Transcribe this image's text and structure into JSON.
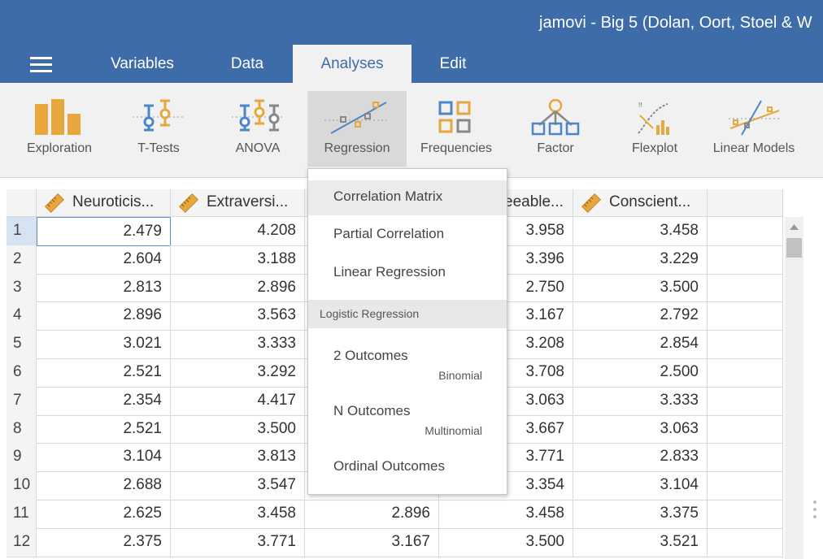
{
  "header": {
    "title": "jamovi - Big 5 (Dolan, Oort, Stoel & W"
  },
  "tabs": [
    "Variables",
    "Data",
    "Analyses",
    "Edit"
  ],
  "ribbon": {
    "buttons": [
      "Exploration",
      "T-Tests",
      "ANOVA",
      "Regression",
      "Frequencies",
      "Factor",
      "Flexplot",
      "Linear Models"
    ]
  },
  "table": {
    "columns": [
      "Neuroticis...",
      "Extraversi...",
      null,
      "eeable...",
      "Conscient..."
    ],
    "rows": [
      [
        "1",
        "2.479",
        "4.208",
        null,
        "3.958",
        "3.458"
      ],
      [
        "2",
        "2.604",
        "3.188",
        null,
        "3.396",
        "3.229"
      ],
      [
        "3",
        "2.813",
        "2.896",
        null,
        "2.750",
        "3.500"
      ],
      [
        "4",
        "2.896",
        "3.563",
        null,
        "3.167",
        "2.792"
      ],
      [
        "5",
        "3.021",
        "3.333",
        null,
        "3.208",
        "2.854"
      ],
      [
        "6",
        "2.521",
        "3.292",
        null,
        "3.708",
        "2.500"
      ],
      [
        "7",
        "2.354",
        "4.417",
        null,
        "3.063",
        "3.333"
      ],
      [
        "8",
        "2.521",
        "3.500",
        null,
        "3.667",
        "3.063"
      ],
      [
        "9",
        "3.104",
        "3.813",
        null,
        "3.771",
        "2.833"
      ],
      [
        "10",
        "2.688",
        "3.547",
        null,
        "3.354",
        "3.104"
      ],
      [
        "11",
        "2.625",
        "3.458",
        "2.896",
        "3.458",
        "3.375"
      ],
      [
        "12",
        "2.375",
        "3.771",
        "3.167",
        "3.500",
        "3.521"
      ]
    ]
  },
  "menu": {
    "items": [
      {
        "label": "Correlation Matrix"
      },
      {
        "label": "Partial Correlation"
      },
      {
        "label": "Linear Regression"
      },
      {
        "section": "Logistic Regression"
      },
      {
        "label": "2 Outcomes",
        "sub": "Binomial"
      },
      {
        "label": "N Outcomes",
        "sub": "Multinomial"
      },
      {
        "label": "Ordinal Outcomes"
      }
    ]
  }
}
